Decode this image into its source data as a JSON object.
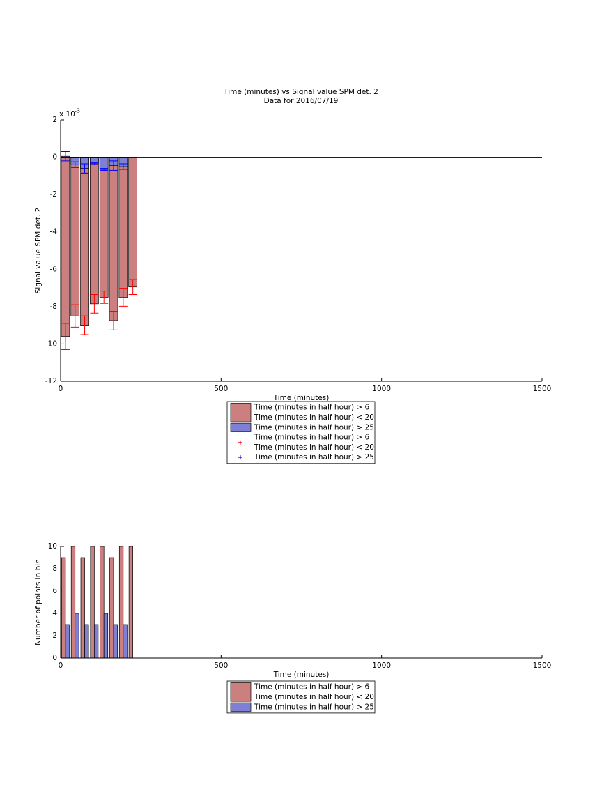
{
  "chart_data": [
    {
      "type": "bar",
      "barmode": "overlay",
      "title": "Time (minutes) vs Signal value SPM det. 2",
      "subtitle": "Data for 2016/07/19",
      "x_label": "Time (minutes)",
      "y_label": "Signal value SPM det. 2",
      "y_exponent_label": "x 10",
      "y_exponent": "-3",
      "x": [
        15,
        45,
        75,
        105,
        135,
        165,
        195,
        225
      ],
      "xlim": [
        0,
        1500
      ],
      "xticks": [
        0,
        500,
        1000,
        1500
      ],
      "ylim": [
        -12,
        2
      ],
      "yticks": [
        2,
        0,
        -2,
        -4,
        -6,
        -8,
        -10,
        -12
      ],
      "series": [
        {
          "name": "Time (minutes in half hour) > 6\nTime (minutes in half hour) < 20",
          "color": "#cc7f7f",
          "error_color": "#ff0000",
          "values": [
            -9.6,
            -8.5,
            -9.0,
            -7.85,
            -7.5,
            -8.75,
            -7.5,
            -6.95
          ],
          "errors": [
            0.7,
            0.6,
            0.5,
            0.5,
            0.33,
            0.5,
            0.48,
            0.4
          ]
        },
        {
          "name": "Time (minutes in half hour) > 25",
          "color": "#7f7fd6",
          "error_color": "#0000ff",
          "values": [
            0.05,
            -0.4,
            -0.6,
            -0.35,
            -0.65,
            -0.45,
            -0.5,
            null
          ],
          "errors": [
            0.25,
            0.15,
            0.25,
            0.05,
            0.05,
            0.25,
            0.15,
            null
          ]
        }
      ]
    },
    {
      "type": "bar",
      "barmode": "group",
      "x_label": "Time (minutes)",
      "y_label": "Number of points in bin",
      "x": [
        15,
        45,
        75,
        105,
        135,
        165,
        195,
        225
      ],
      "xlim": [
        0,
        1500
      ],
      "xticks": [
        0,
        500,
        1000,
        1500
      ],
      "ylim": [
        0,
        10
      ],
      "yticks": [
        0,
        2,
        4,
        6,
        8,
        10
      ],
      "series": [
        {
          "name": "Time (minutes in half hour) > 6\nTime (minutes in half hour) < 20",
          "color": "#cc7f7f",
          "values": [
            9,
            10,
            9,
            10,
            10,
            9,
            10,
            10
          ]
        },
        {
          "name": "Time (minutes in half hour) > 25",
          "color": "#7f7fd6",
          "values": [
            3,
            4,
            3,
            3,
            4,
            3,
            3,
            null
          ]
        }
      ]
    }
  ]
}
